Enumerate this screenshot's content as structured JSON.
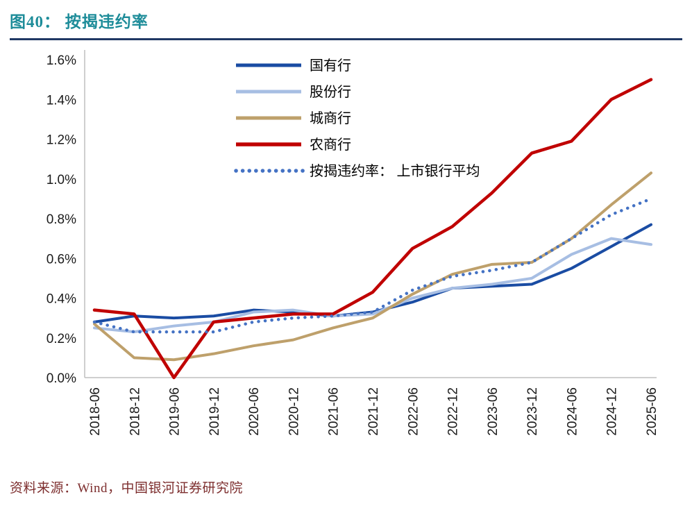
{
  "header": {
    "title": "图40： 按揭违约率"
  },
  "footer": {
    "source": "资料来源：Wind，中国银河证券研究院"
  },
  "colors": {
    "title": "#1d8c99",
    "rule": "#1f3864",
    "footer": "#7d2e2e",
    "axis_line": "#bfbfbf",
    "tick_text": "#1a1a1a",
    "legend_text": "#000000"
  },
  "chart_data": {
    "type": "line",
    "title": "按揭违约率",
    "x": [
      "2018-06",
      "2018-12",
      "2019-06",
      "2019-12",
      "2020-06",
      "2020-12",
      "2021-06",
      "2021-12",
      "2022-06",
      "2022-12",
      "2023-06",
      "2023-12",
      "2024-06",
      "2024-12",
      "2025-06"
    ],
    "series": [
      {
        "name": "国有行",
        "color": "#1a4ca3",
        "style": "solid",
        "width": 4,
        "values": [
          0.28,
          0.31,
          0.3,
          0.31,
          0.34,
          0.33,
          0.31,
          0.33,
          0.38,
          0.45,
          0.46,
          0.47,
          0.55,
          0.66,
          0.77
        ]
      },
      {
        "name": "股份行",
        "color": "#a7bee3",
        "style": "solid",
        "width": 4,
        "values": [
          0.25,
          0.23,
          0.26,
          0.28,
          0.33,
          0.34,
          0.31,
          0.32,
          0.4,
          0.45,
          0.47,
          0.5,
          0.62,
          0.7,
          0.67
        ]
      },
      {
        "name": "城商行",
        "color": "#bea06b",
        "style": "solid",
        "width": 4,
        "values": [
          0.27,
          0.1,
          0.09,
          0.12,
          0.16,
          0.19,
          0.25,
          0.3,
          0.42,
          0.52,
          0.57,
          0.58,
          0.7,
          0.87,
          1.03
        ]
      },
      {
        "name": "农商行",
        "color": "#c00000",
        "style": "solid",
        "width": 4.5,
        "values": [
          0.34,
          0.32,
          0.0,
          0.28,
          0.3,
          0.32,
          0.32,
          0.43,
          0.65,
          0.76,
          0.93,
          1.13,
          1.19,
          1.4,
          1.5
        ]
      },
      {
        "name": "按揭违约率： 上市银行平均",
        "color": "#4472c4",
        "style": "dotted",
        "width": 4.5,
        "values": [
          0.28,
          0.23,
          0.23,
          0.23,
          0.28,
          0.3,
          0.31,
          0.33,
          0.44,
          0.51,
          0.54,
          0.58,
          0.7,
          0.82,
          0.9
        ]
      }
    ],
    "ylim": [
      0,
      1.6
    ],
    "ytick_step": 0.2,
    "ytick_format": "percent_one_decimal",
    "xlabel": "",
    "ylabel": "",
    "grid": false,
    "legend_position": "top-left-inside"
  }
}
